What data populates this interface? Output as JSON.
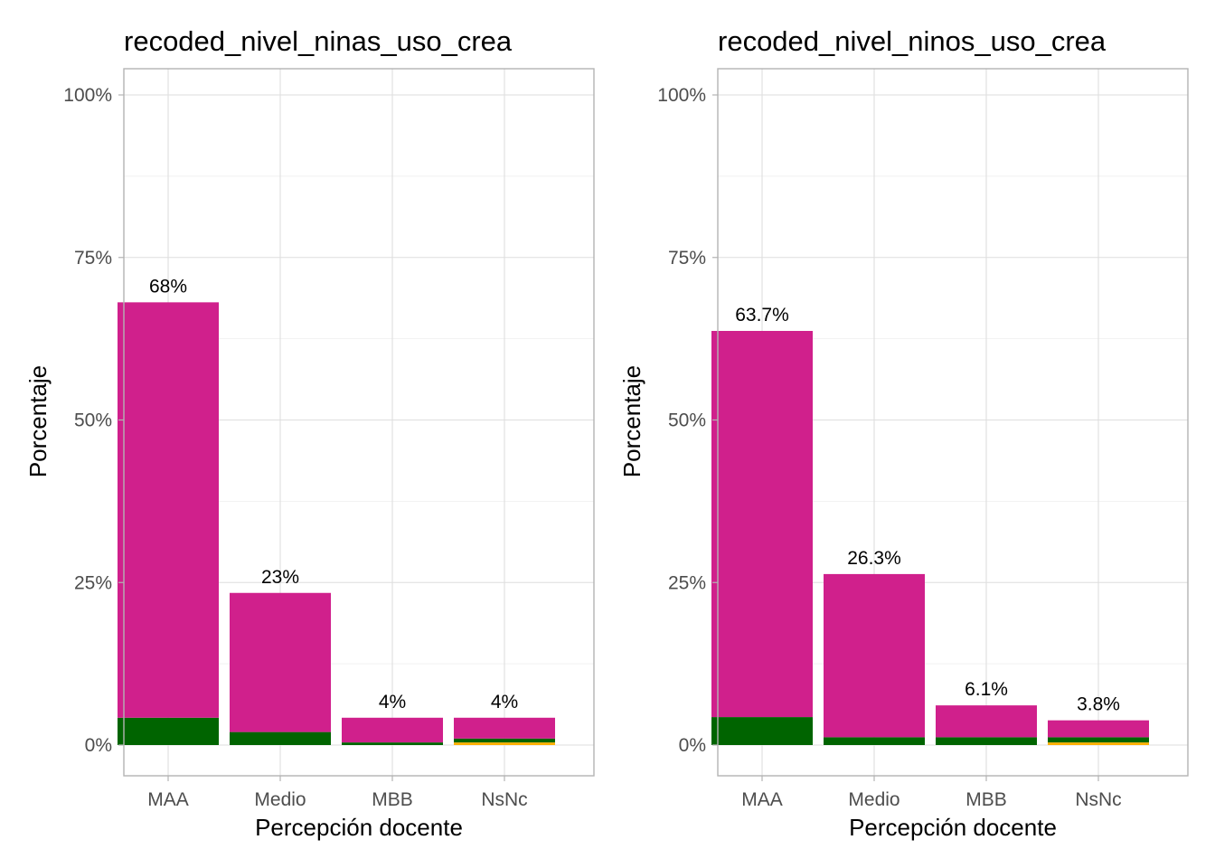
{
  "chart_data": [
    {
      "type": "bar",
      "stacked": true,
      "title": "recoded_nivel_ninas_uso_crea",
      "xlabel": "Percepción docente",
      "ylabel": "Porcentaje",
      "categories": [
        "MAA",
        "Medio",
        "MBB",
        "NsNc"
      ],
      "totals_labels": [
        "68%",
        "23%",
        "4%",
        "4%"
      ],
      "series": [
        {
          "color": "#FFB000",
          "values": [
            0,
            0,
            0,
            0.4
          ]
        },
        {
          "color": "#006400",
          "values": [
            4.2,
            2.0,
            0.4,
            0.6
          ]
        },
        {
          "color": "#D0208C",
          "values": [
            63.9,
            21.4,
            3.8,
            3.2
          ]
        }
      ],
      "ylim": [
        0,
        100
      ],
      "yticks": [
        0,
        25,
        50,
        75,
        100
      ],
      "ytick_labels": [
        "0%",
        "25%",
        "50%",
        "75%",
        "100%"
      ],
      "grid": true
    },
    {
      "type": "bar",
      "stacked": true,
      "title": "recoded_nivel_ninos_uso_crea",
      "xlabel": "Percepción docente",
      "ylabel": "Porcentaje",
      "categories": [
        "MAA",
        "Medio",
        "MBB",
        "NsNc"
      ],
      "totals_labels": [
        "63.7%",
        "26.3%",
        "6.1%",
        "3.8%"
      ],
      "series": [
        {
          "color": "#FFB000",
          "values": [
            0,
            0,
            0,
            0.4
          ]
        },
        {
          "color": "#006400",
          "values": [
            4.3,
            1.2,
            1.2,
            0.8
          ]
        },
        {
          "color": "#D0208C",
          "values": [
            59.4,
            25.1,
            4.9,
            2.6
          ]
        }
      ],
      "ylim": [
        0,
        100
      ],
      "yticks": [
        0,
        25,
        50,
        75,
        100
      ],
      "ytick_labels": [
        "0%",
        "25%",
        "50%",
        "75%",
        "100%"
      ],
      "grid": true
    }
  ]
}
